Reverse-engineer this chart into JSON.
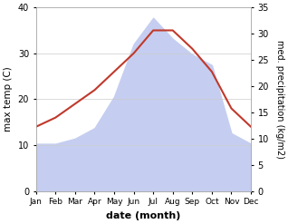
{
  "months": [
    "Jan",
    "Feb",
    "Mar",
    "Apr",
    "May",
    "Jun",
    "Jul",
    "Aug",
    "Sep",
    "Oct",
    "Nov",
    "Dec"
  ],
  "max_temp": [
    14,
    16,
    19,
    22,
    26,
    30,
    35,
    35,
    31,
    26,
    18,
    14
  ],
  "precipitation": [
    9,
    9,
    10,
    12,
    18,
    28,
    33,
    29,
    26,
    24,
    11,
    9
  ],
  "temp_color": "#c0392b",
  "precip_fill_color": "#c5cef0",
  "temp_ylim": [
    0,
    40
  ],
  "precip_ylim": [
    0,
    35
  ],
  "temp_yticks": [
    0,
    10,
    20,
    30,
    40
  ],
  "precip_yticks": [
    0,
    5,
    10,
    15,
    20,
    25,
    30,
    35
  ],
  "xlabel": "date (month)",
  "ylabel_left": "max temp (C)",
  "ylabel_right": "med. precipitation (kg/m2)",
  "background_color": "#ffffff"
}
